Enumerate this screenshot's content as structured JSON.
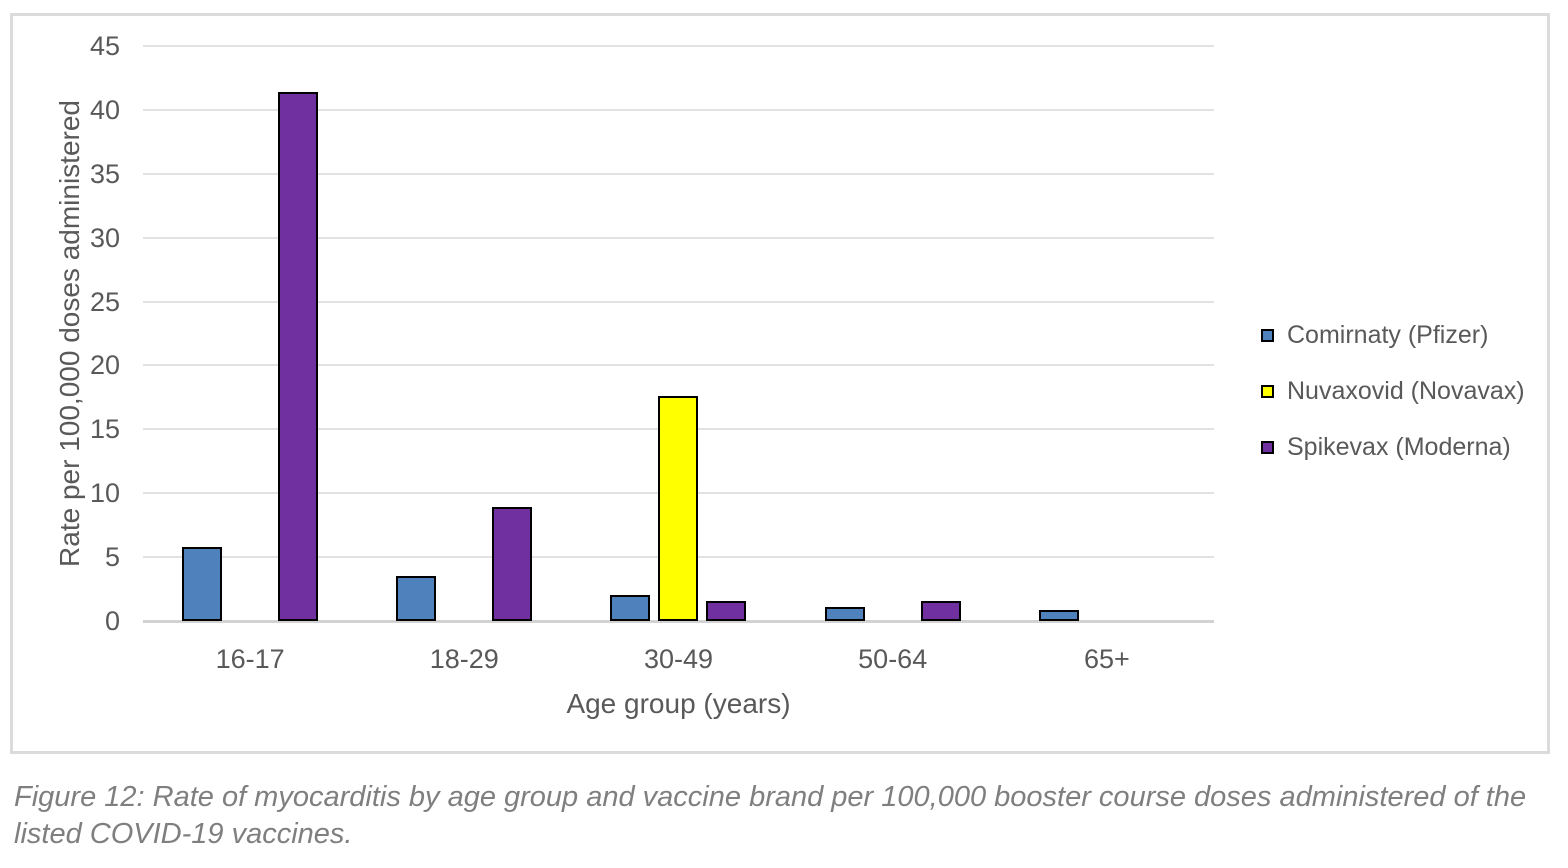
{
  "chart_data": {
    "type": "bar",
    "title": "",
    "categories": [
      "16-17",
      "18-29",
      "30-49",
      "50-64",
      "65+"
    ],
    "series": [
      {
        "name": "Comirnaty (Pfizer)",
        "color": "#4F81BD",
        "values": [
          5.8,
          3.5,
          2.0,
          1.1,
          0.9
        ]
      },
      {
        "name": "Nuvaxovid (Novavax)",
        "color": "#FFFF00",
        "values": [
          0,
          0,
          17.6,
          0,
          0
        ]
      },
      {
        "name": "Spikevax (Moderna)",
        "color": "#7030A0",
        "values": [
          41.4,
          8.9,
          1.6,
          1.6,
          0
        ]
      }
    ],
    "xlabel": "Age group (years)",
    "ylabel": "Rate per 100,000 doses administered",
    "ylim": [
      0,
      45
    ],
    "yticks": [
      0,
      5,
      10,
      15,
      20,
      25,
      30,
      35,
      40,
      45
    ],
    "grid": "horizontal",
    "legend_position": "right",
    "bar_border_color": "#000000"
  },
  "caption": "Figure 12: Rate of myocarditis by age group and vaccine brand per 100,000 booster course doses administered of the listed COVID-19 vaccines.",
  "colors": {
    "text": "#595959",
    "caption_text": "#7F7F7F",
    "gridline": "#E2E2E2",
    "axis_line": "#D2D2D2",
    "frame_border": "#DBDBDB"
  }
}
